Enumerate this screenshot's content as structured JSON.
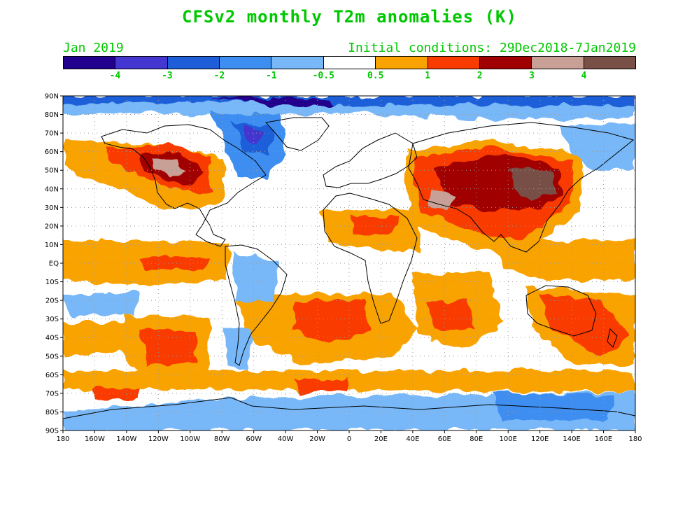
{
  "title": "CFSv2 monthly T2m anomalies (K)",
  "month_label": "Jan 2019",
  "initial_conditions": "Initial conditions: 29Dec2018-7Jan2019",
  "colorbar": {
    "colors": [
      "#20008c",
      "#4436d0",
      "#1e5ed8",
      "#3c8ef0",
      "#78b8f8",
      "#ffffff",
      "#f9a300",
      "#f93b00",
      "#a00000",
      "#c8a096",
      "#785046"
    ],
    "labels": [
      "-4",
      "-3",
      "-2",
      "-1",
      "-0.5",
      "0.5",
      "1",
      "2",
      "3",
      "4"
    ]
  },
  "map": {
    "lat_labels": [
      "90N",
      "80N",
      "70N",
      "60N",
      "50N",
      "40N",
      "30N",
      "20N",
      "10N",
      "EQ",
      "10S",
      "20S",
      "30S",
      "40S",
      "50S",
      "60S",
      "70S",
      "80S",
      "90S"
    ],
    "lon_labels": [
      "180",
      "160W",
      "140W",
      "120W",
      "100W",
      "80W",
      "60W",
      "40W",
      "20W",
      "0",
      "20E",
      "40E",
      "60E",
      "80E",
      "100E",
      "120E",
      "140E",
      "160E",
      "180"
    ]
  }
}
